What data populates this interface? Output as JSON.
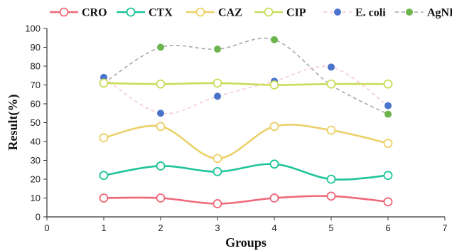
{
  "chart_data": {
    "type": "line",
    "xlabel": "Groups",
    "ylabel": "Result(%)",
    "xlim": [
      0,
      7
    ],
    "ylim": [
      0,
      100
    ],
    "xticks": [
      "0",
      "1",
      "2",
      "3",
      "4",
      "5",
      "6",
      "7"
    ],
    "yticks": [
      "0",
      "10",
      "20",
      "30",
      "40",
      "50",
      "60",
      "70",
      "80",
      "90",
      "100"
    ],
    "x": [
      1,
      2,
      3,
      4,
      5,
      6
    ],
    "grid": false,
    "legend_position": "top",
    "series": [
      {
        "name": "CRO",
        "color": "#f06878",
        "marker": "open-circle",
        "line": "solid",
        "values": [
          10,
          10,
          7,
          10,
          11,
          8
        ]
      },
      {
        "name": "CTX",
        "color": "#1fc49a",
        "marker": "open-circle",
        "line": "solid",
        "values": [
          22,
          27,
          24,
          28,
          20,
          22
        ]
      },
      {
        "name": "CAZ",
        "color": "#ecd068",
        "marker": "open-circle",
        "line": "solid",
        "values": [
          42,
          48,
          31,
          48,
          46,
          39
        ]
      },
      {
        "name": "CIP",
        "color": "#cadc5c",
        "marker": "open-circle",
        "line": "solid",
        "values": [
          71,
          70.5,
          71,
          70,
          70.5,
          70.5
        ]
      },
      {
        "name": "E. coli",
        "color": "#4a74cc",
        "linecolor": "#f6cad4",
        "marker": "filled-circle",
        "line": "dashed",
        "values": [
          74,
          55,
          64,
          72,
          79.5,
          59
        ]
      },
      {
        "name": "AgNPs",
        "color": "#6cb44c",
        "linecolor": "#a8a8a8",
        "marker": "filled-circle",
        "line": "dashed",
        "values": [
          71,
          90,
          89,
          94,
          70,
          54.5
        ]
      }
    ]
  }
}
